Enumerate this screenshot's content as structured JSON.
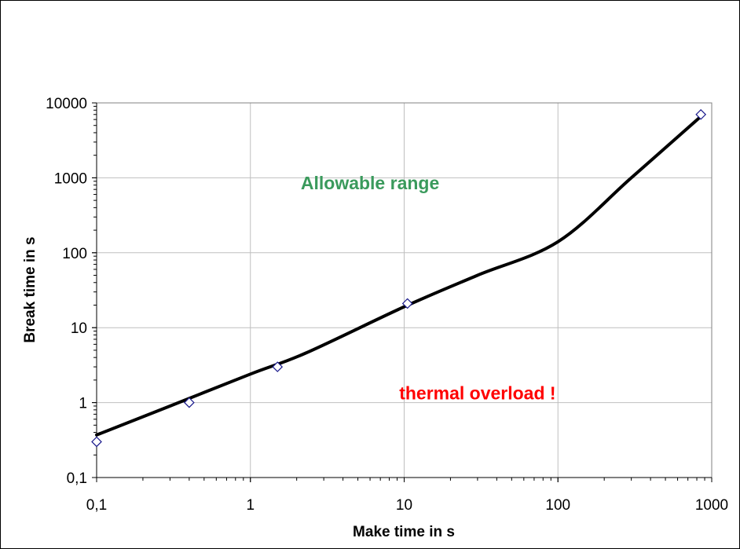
{
  "chart_data": {
    "type": "scatter",
    "xlabel": "Make time in s",
    "ylabel": "Break time in s",
    "x_scale": "log",
    "y_scale": "log",
    "xlim": [
      0.1,
      1000
    ],
    "ylim": [
      0.1,
      10000
    ],
    "x_ticks": [
      {
        "value": 0.1,
        "label": "0,1"
      },
      {
        "value": 1,
        "label": "1"
      },
      {
        "value": 10,
        "label": "10"
      },
      {
        "value": 100,
        "label": "100"
      },
      {
        "value": 1000,
        "label": "1000"
      }
    ],
    "y_ticks": [
      {
        "value": 0.1,
        "label": "0,1"
      },
      {
        "value": 1,
        "label": "1"
      },
      {
        "value": 10,
        "label": "10"
      },
      {
        "value": 100,
        "label": "100"
      },
      {
        "value": 1000,
        "label": "1000"
      },
      {
        "value": 10000,
        "label": "10000"
      }
    ],
    "grid": true,
    "series": [
      {
        "kind": "points",
        "marker": "diamond",
        "color": "#1a1a8c",
        "x": [
          0.1,
          0.4,
          1.5,
          10.5,
          850
        ],
        "y": [
          0.3,
          1.0,
          3.0,
          21,
          7000
        ]
      },
      {
        "kind": "curve",
        "color": "#000000",
        "x": [
          0.1,
          0.3,
          1,
          2.3,
          10,
          30,
          100,
          300,
          850
        ],
        "y": [
          0.37,
          0.9,
          2.4,
          4.6,
          19,
          50,
          140,
          1000,
          6600
        ]
      }
    ],
    "annotations": [
      {
        "text": "Allowable range",
        "color": "#3a9a5c",
        "x": 6.0,
        "y": 700
      },
      {
        "text": "thermal overload !",
        "color": "#ff0000",
        "x": 30,
        "y": 1.1
      }
    ]
  }
}
